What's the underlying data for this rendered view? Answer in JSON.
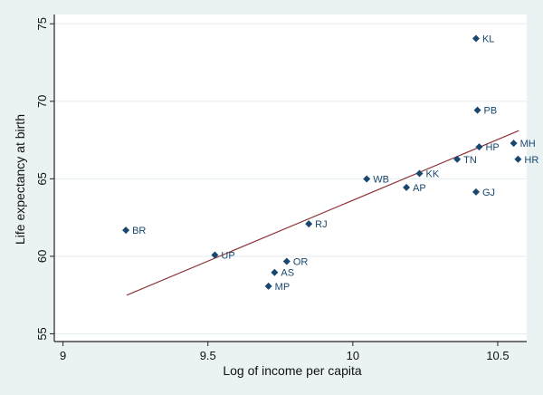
{
  "chart_data": {
    "type": "scatter",
    "title": "",
    "xlabel": "Log of income per capita",
    "ylabel": "Life expectancy at birth",
    "xlim": [
      8.97,
      10.6
    ],
    "ylim": [
      54.5,
      75.6
    ],
    "xticks": [
      9,
      9.5,
      10,
      10.5
    ],
    "xtick_labels": [
      "9",
      "9.5",
      "10",
      "10.5"
    ],
    "yticks": [
      55,
      60,
      65,
      70,
      75
    ],
    "ytick_labels": [
      "55",
      "60",
      "65",
      "70",
      "75"
    ],
    "grid": true,
    "colors": {
      "marker": "#1a476f",
      "fit_line": "#90353b",
      "background": "#eaf2f3",
      "plot": "#ffffff",
      "grid": "#e3eef1"
    },
    "points": [
      {
        "label": "KL",
        "x": 10.425,
        "y": 74.05
      },
      {
        "label": "PB",
        "x": 10.43,
        "y": 69.43
      },
      {
        "label": "HP",
        "x": 10.436,
        "y": 67.06
      },
      {
        "label": "MH",
        "x": 10.555,
        "y": 67.29
      },
      {
        "label": "HR",
        "x": 10.57,
        "y": 66.26
      },
      {
        "label": "TN",
        "x": 10.36,
        "y": 66.26
      },
      {
        "label": "KK",
        "x": 10.23,
        "y": 65.34
      },
      {
        "label": "AP",
        "x": 10.185,
        "y": 64.44
      },
      {
        "label": "GJ",
        "x": 10.425,
        "y": 64.15
      },
      {
        "label": "WB",
        "x": 10.048,
        "y": 64.99
      },
      {
        "label": "BR",
        "x": 9.217,
        "y": 61.68
      },
      {
        "label": "UP",
        "x": 9.524,
        "y": 60.08
      },
      {
        "label": "RJ",
        "x": 9.848,
        "y": 62.09
      },
      {
        "label": "OR",
        "x": 9.772,
        "y": 59.67
      },
      {
        "label": "AS",
        "x": 9.73,
        "y": 58.96
      },
      {
        "label": "MP",
        "x": 9.709,
        "y": 58.07
      }
    ],
    "fit_line": {
      "type": "linear",
      "x": [
        9.22,
        10.573
      ],
      "y": [
        57.49,
        68.11
      ]
    }
  }
}
